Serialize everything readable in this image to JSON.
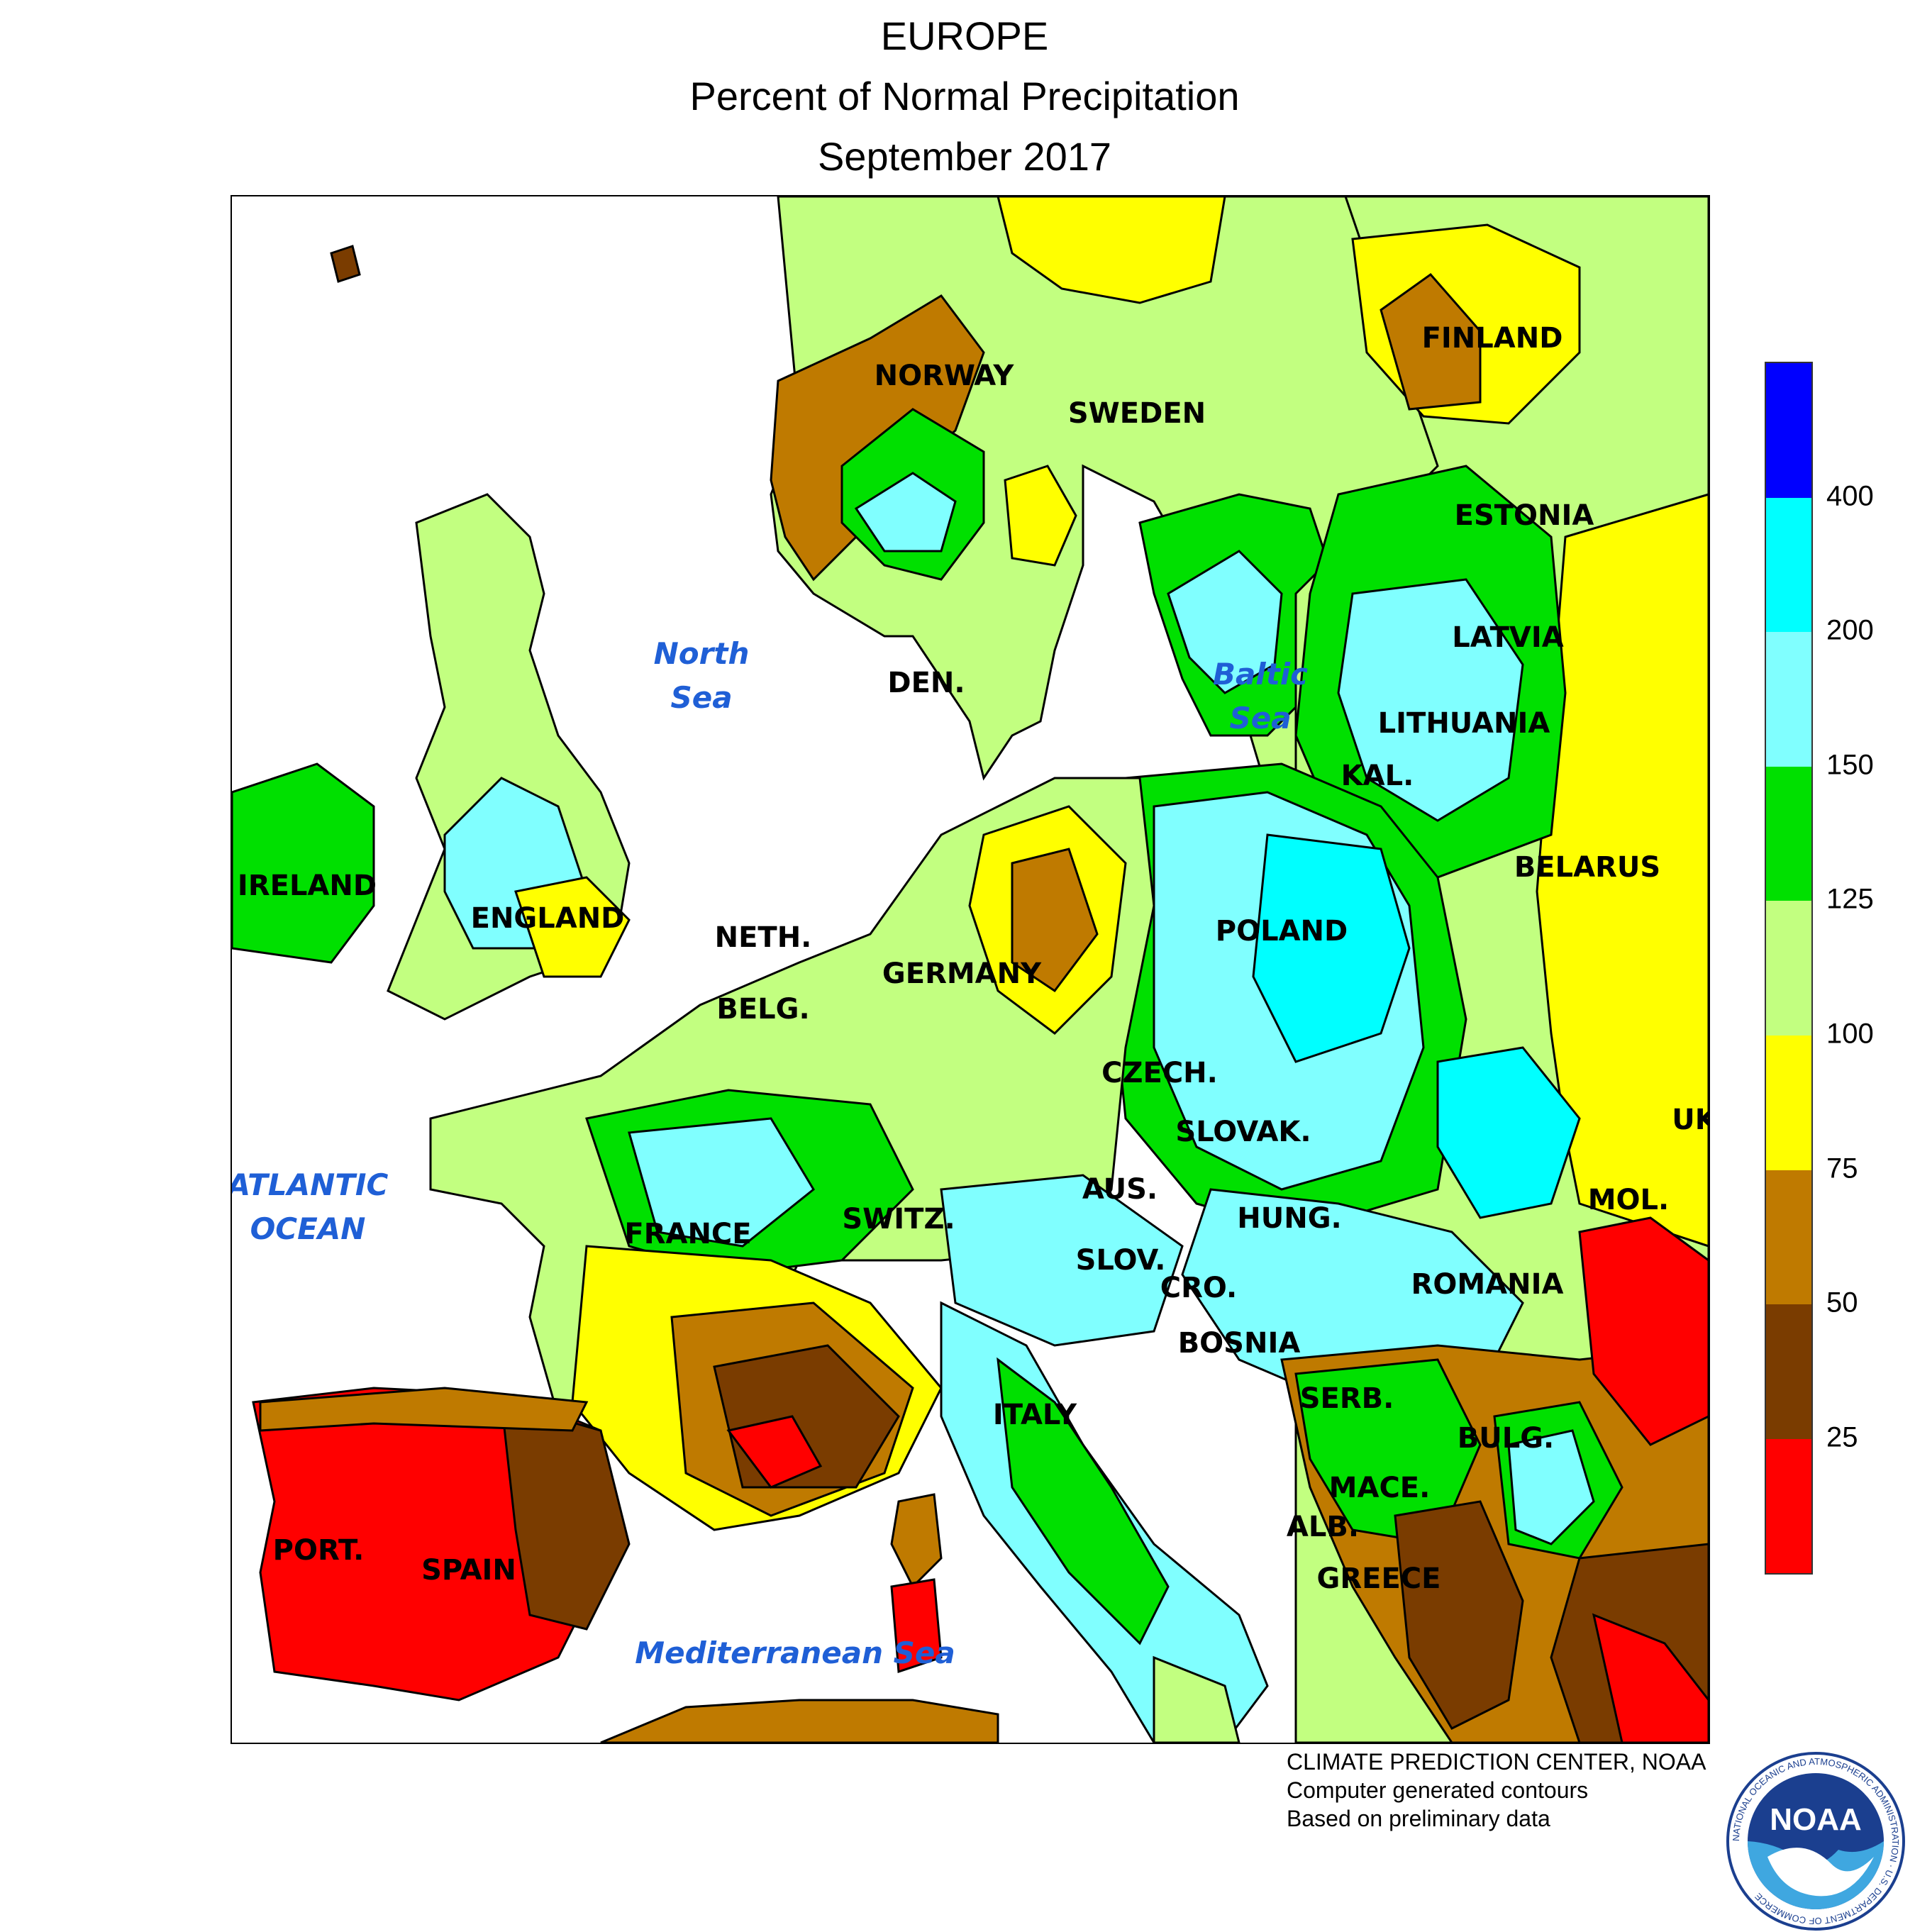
{
  "title": {
    "line1": "EUROPE",
    "line2": "Percent of Normal Precipitation",
    "line3": "September 2017"
  },
  "map": {
    "countries": [
      {
        "id": "norway",
        "label": "NORWAY"
      },
      {
        "id": "sweden",
        "label": "SWEDEN"
      },
      {
        "id": "finland",
        "label": "FINLAND"
      },
      {
        "id": "estonia",
        "label": "ESTONIA"
      },
      {
        "id": "latvia",
        "label": "LATVIA"
      },
      {
        "id": "lithuania",
        "label": "LITHUANIA"
      },
      {
        "id": "kal",
        "label": "KAL."
      },
      {
        "id": "belarus",
        "label": "BELARUS"
      },
      {
        "id": "ireland",
        "label": "IRELAND"
      },
      {
        "id": "england",
        "label": "ENGLAND"
      },
      {
        "id": "den",
        "label": "DEN."
      },
      {
        "id": "neth",
        "label": "NETH."
      },
      {
        "id": "belg",
        "label": "BELG."
      },
      {
        "id": "germany",
        "label": "GERMANY"
      },
      {
        "id": "poland",
        "label": "POLAND"
      },
      {
        "id": "czech",
        "label": "CZECH."
      },
      {
        "id": "slovak",
        "label": "SLOVAK."
      },
      {
        "id": "uk",
        "label": "UK"
      },
      {
        "id": "mol",
        "label": "MOL."
      },
      {
        "id": "aus",
        "label": "AUS."
      },
      {
        "id": "switz",
        "label": "SWITZ."
      },
      {
        "id": "france",
        "label": "FRANCE"
      },
      {
        "id": "hung",
        "label": "HUNG."
      },
      {
        "id": "slov",
        "label": "SLOV."
      },
      {
        "id": "cro",
        "label": "CRO."
      },
      {
        "id": "romania",
        "label": "ROMANIA"
      },
      {
        "id": "bosnia",
        "label": "BOSNIA"
      },
      {
        "id": "serb",
        "label": "SERB."
      },
      {
        "id": "bulg",
        "label": "BULG."
      },
      {
        "id": "italy",
        "label": "ITALY"
      },
      {
        "id": "mace",
        "label": "MACE."
      },
      {
        "id": "alb",
        "label": "ALB."
      },
      {
        "id": "greece",
        "label": "GREECE"
      },
      {
        "id": "port",
        "label": "PORT."
      },
      {
        "id": "spain",
        "label": "SPAIN"
      }
    ],
    "water_bodies": [
      {
        "id": "north-sea",
        "line1": "North",
        "line2": "Sea"
      },
      {
        "id": "baltic-sea",
        "line1": "Baltic",
        "line2": "Sea"
      },
      {
        "id": "atlantic-ocean",
        "line1": "ATLANTIC",
        "line2": "OCEAN"
      },
      {
        "id": "mediterranean-sea",
        "line1": "Mediterranean Sea",
        "line2": ""
      }
    ]
  },
  "legend": {
    "bins": [
      {
        "range": "0-25",
        "color": "#ff0000"
      },
      {
        "range": "25-50",
        "color": "#7a3c00"
      },
      {
        "range": "50-75",
        "color": "#bf7a00"
      },
      {
        "range": "75-100",
        "color": "#ffff00"
      },
      {
        "range": "100-125",
        "color": "#c2ff80"
      },
      {
        "range": "125-150",
        "color": "#00e000"
      },
      {
        "range": "150-200",
        "color": "#80ffff"
      },
      {
        "range": "200-400",
        "color": "#00ffff"
      },
      {
        "range": ">400",
        "color": "#0000ff"
      }
    ],
    "ticks": [
      "25",
      "50",
      "75",
      "100",
      "125",
      "150",
      "200",
      "400"
    ]
  },
  "credits": {
    "line1": "CLIMATE PREDICTION CENTER, NOAA",
    "line2": "Computer generated contours",
    "line3": "Based on preliminary data"
  },
  "logo": {
    "center_text": "NOAA",
    "ring_text": "NATIONAL OCEANIC AND ATMOSPHERIC ADMINISTRATION · U.S. DEPARTMENT OF COMMERCE"
  }
}
